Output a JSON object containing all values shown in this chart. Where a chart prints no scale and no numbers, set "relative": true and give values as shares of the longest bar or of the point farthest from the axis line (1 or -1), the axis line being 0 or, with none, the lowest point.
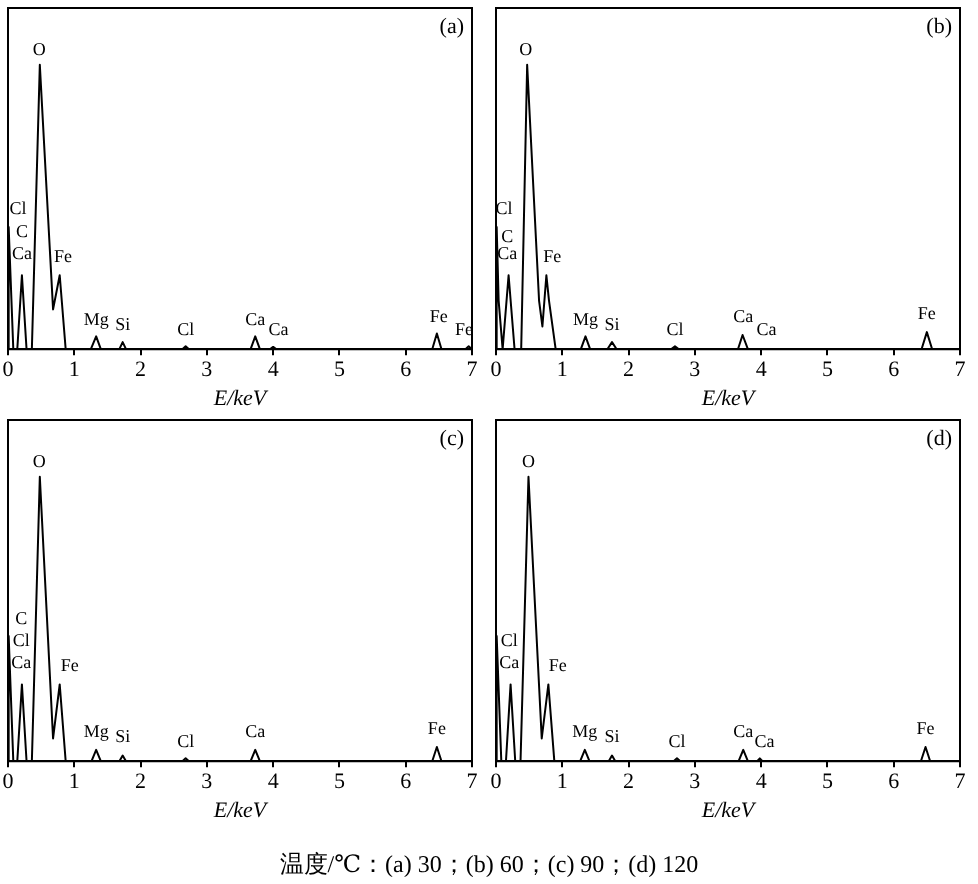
{
  "chart_data": [
    {
      "type": "line",
      "title": "(a)",
      "xlabel": "E/keV",
      "relative": true,
      "marker": "none",
      "xlim": [
        0,
        7
      ],
      "xticks": [
        0,
        1,
        2,
        3,
        4,
        5,
        6,
        7
      ],
      "series": [
        {
          "color": "#000000",
          "x": [
            0,
            0.01,
            0.08,
            0.14,
            0.21,
            0.28,
            0.36,
            0.48,
            0.68,
            0.78,
            0.87,
            1.25,
            1.33,
            1.4,
            1.68,
            1.73,
            1.78,
            2.63,
            2.68,
            2.73,
            3.66,
            3.73,
            3.8,
            3.95,
            4.0,
            4.05,
            6.4,
            6.47,
            6.54,
            6.9,
            6.95,
            7
          ],
          "values": [
            0,
            0.43,
            0,
            0,
            0.26,
            0,
            0,
            1,
            0.14,
            0.26,
            0,
            0,
            0.045,
            0,
            0,
            0.025,
            0,
            0,
            0.01,
            0,
            0,
            0.045,
            0,
            0,
            0.008,
            0,
            0,
            0.055,
            0,
            0,
            0.01,
            0
          ]
        }
      ],
      "annotations": [
        {
          "text": "Cl",
          "x": 0.15,
          "y": 0.44
        },
        "C",
        {
          "text": "Ca",
          "x": 0.21,
          "y": 0.28
        },
        {
          "text": "O",
          "x": 0.47,
          "y": 1
        },
        {
          "text": "Fe",
          "x": 0.83,
          "y": 0.27
        },
        {
          "text": "Mg",
          "x": 1.33,
          "y": 0.05
        },
        {
          "text": "Si",
          "x": 1.73,
          "y": 0.03
        },
        {
          "text": "Cl",
          "x": 2.68,
          "y": 0.015
        },
        {
          "text": "Ca",
          "x": 3.73,
          "y": 0.05
        },
        {
          "text": "Ca",
          "x": 4.08,
          "y": 0.015
        },
        {
          "text": "Fe",
          "x": 6.5,
          "y": 0.06
        },
        {
          "text": "Fe",
          "x": 6.88,
          "y": 0.015
        }
      ]
    },
    {
      "type": "line",
      "title": "(b)",
      "xlabel": "E/keV",
      "relative": true,
      "marker": "none",
      "xlim": [
        0,
        7
      ],
      "xticks": [
        0,
        1,
        2,
        3,
        4,
        5,
        6,
        7
      ],
      "series": [
        {
          "color": "#000000",
          "x": [
            0,
            0.01,
            0.04,
            0.1,
            0.19,
            0.28,
            0.38,
            0.47,
            0.65,
            0.7,
            0.76,
            0.8,
            0.9,
            1.28,
            1.35,
            1.42,
            1.68,
            1.75,
            1.82,
            2.64,
            2.7,
            2.76,
            3.65,
            3.72,
            3.8,
            6.42,
            6.5,
            6.58,
            7
          ],
          "values": [
            0,
            0.43,
            0.17,
            0,
            0.26,
            0,
            0,
            1,
            0.17,
            0.08,
            0.26,
            0.17,
            0,
            0,
            0.045,
            0,
            0,
            0.025,
            0,
            0,
            0.01,
            0,
            0,
            0.05,
            0,
            0,
            0.06,
            0,
            0
          ]
        }
      ],
      "annotations": [
        {
          "text": "Cl",
          "x": 0.12,
          "y": 0.44
        },
        {
          "text": "C",
          "x": 0.17,
          "y": 0.34
        },
        {
          "text": "Ca",
          "x": 0.17,
          "y": 0.28
        },
        {
          "text": "O",
          "x": 0.45,
          "y": 1
        },
        {
          "text": "Fe",
          "x": 0.85,
          "y": 0.27
        },
        {
          "text": "Mg",
          "x": 1.35,
          "y": 0.05
        },
        {
          "text": "Si",
          "x": 1.75,
          "y": 0.03
        },
        {
          "text": "Cl",
          "x": 2.7,
          "y": 0.015
        },
        {
          "text": "Ca",
          "x": 3.73,
          "y": 0.06
        },
        {
          "text": "Ca",
          "x": 4.08,
          "y": 0.015
        },
        {
          "text": "Fe",
          "x": 6.5,
          "y": 0.07
        }
      ]
    },
    {
      "type": "line",
      "title": "(c)",
      "xlabel": "E/keV",
      "relative": true,
      "marker": "none",
      "xlim": [
        0,
        7
      ],
      "xticks": [
        0,
        1,
        2,
        3,
        4,
        5,
        6,
        7
      ],
      "series": [
        {
          "color": "#000000",
          "x": [
            0,
            0.01,
            0.08,
            0.14,
            0.21,
            0.28,
            0.36,
            0.48,
            0.68,
            0.78,
            0.87,
            1.26,
            1.33,
            1.4,
            1.68,
            1.73,
            1.78,
            2.63,
            2.68,
            2.73,
            3.66,
            3.73,
            3.8,
            6.4,
            6.47,
            6.54,
            7
          ],
          "values": [
            0,
            0.44,
            0,
            0,
            0.27,
            0,
            0,
            1,
            0.08,
            0.27,
            0,
            0,
            0.04,
            0,
            0,
            0.02,
            0,
            0,
            0.01,
            0,
            0,
            0.04,
            0,
            0,
            0.05,
            0,
            0
          ]
        }
      ],
      "annotations": [
        "C",
        "Cl",
        {
          "text": "Ca",
          "x": 0.2,
          "y": 0.29
        },
        {
          "text": "O",
          "x": 0.47,
          "y": 1
        },
        {
          "text": "Fe",
          "x": 0.93,
          "y": 0.28
        },
        {
          "text": "Mg",
          "x": 1.33,
          "y": 0.05
        },
        {
          "text": "Si",
          "x": 1.73,
          "y": 0.03
        },
        {
          "text": "Cl",
          "x": 2.68,
          "y": 0.015
        },
        {
          "text": "Ca",
          "x": 3.73,
          "y": 0.05
        },
        {
          "text": "Fe",
          "x": 6.47,
          "y": 0.06
        }
      ]
    },
    {
      "type": "line",
      "title": "(d)",
      "xlabel": "E/keV",
      "relative": true,
      "marker": "none",
      "xlim": [
        0,
        7
      ],
      "xticks": [
        0,
        1,
        2,
        3,
        4,
        5,
        6,
        7
      ],
      "series": [
        {
          "color": "#000000",
          "x": [
            0,
            0.01,
            0.08,
            0.15,
            0.22,
            0.29,
            0.37,
            0.49,
            0.69,
            0.79,
            0.88,
            1.27,
            1.34,
            1.41,
            1.7,
            1.75,
            1.8,
            2.68,
            2.73,
            2.78,
            3.66,
            3.73,
            3.8,
            3.94,
            3.98,
            4.02,
            6.41,
            6.48,
            6.55,
            7
          ],
          "values": [
            0,
            0.44,
            0,
            0,
            0.27,
            0,
            0,
            1,
            0.08,
            0.27,
            0,
            0,
            0.04,
            0,
            0,
            0.02,
            0,
            0,
            0.01,
            0,
            0,
            0.04,
            0,
            0,
            0.01,
            0,
            0,
            0.05,
            0,
            0
          ]
        }
      ],
      "annotations": [
        "Cl",
        {
          "text": "Ca",
          "x": 0.2,
          "y": 0.29
        },
        {
          "text": "O",
          "x": 0.49,
          "y": 1
        },
        {
          "text": "Fe",
          "x": 0.93,
          "y": 0.28
        },
        {
          "text": "Mg",
          "x": 1.34,
          "y": 0.05
        },
        {
          "text": "Si",
          "x": 1.75,
          "y": 0.03
        },
        {
          "text": "Cl",
          "x": 2.73,
          "y": 0.015
        },
        {
          "text": "Ca",
          "x": 3.73,
          "y": 0.05
        },
        {
          "text": "Ca",
          "x": 4.05,
          "y": 0.015
        },
        {
          "text": "Fe",
          "x": 6.48,
          "y": 0.06
        }
      ]
    },
    {
      "type": "other",
      "annotations": [
        "温度/℃：(a) 30；(b) 60；(c) 90；(d) 120"
      ]
    }
  ]
}
